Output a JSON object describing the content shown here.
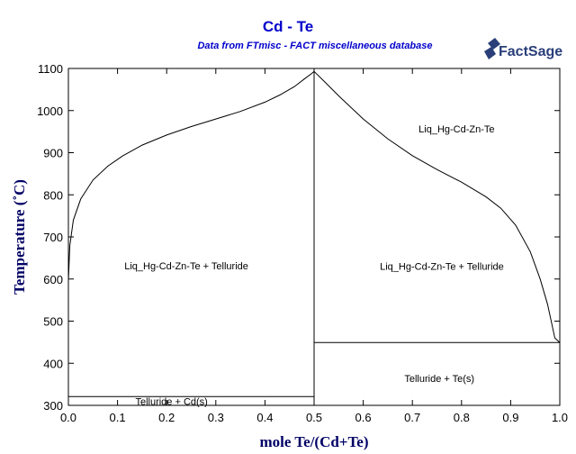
{
  "header": {
    "title": "Cd - Te",
    "subtitle": "Data from FTmisc - FACT miscellaneous database",
    "logo_text": "FactSage"
  },
  "colors": {
    "title": "#0000cc",
    "logo": "#2a3f7a",
    "axis_title": "#000066",
    "line": "#000000"
  },
  "chart_data": {
    "type": "line",
    "title": "Cd - Te",
    "subtitle": "Data from FTmisc - FACT miscellaneous database",
    "xlabel": "mole Te/(Cd+Te)",
    "ylabel": "Temperature (˚C)",
    "xlim": [
      0,
      1
    ],
    "ylim": [
      300,
      1100
    ],
    "xticks": [
      "0.0",
      "0.1",
      "0.2",
      "0.3",
      "0.4",
      "0.5",
      "0.6",
      "0.7",
      "0.8",
      "0.9",
      "1.0"
    ],
    "yticks": [
      "300",
      "400",
      "500",
      "600",
      "700",
      "800",
      "900",
      "1000",
      "1100"
    ],
    "grid": false,
    "series": [
      {
        "kind": "liquidus-left",
        "points": [
          [
            0.0,
            597
          ],
          [
            0.003,
            680
          ],
          [
            0.01,
            740
          ],
          [
            0.025,
            790
          ],
          [
            0.05,
            835
          ],
          [
            0.08,
            868
          ],
          [
            0.11,
            892
          ],
          [
            0.15,
            918
          ],
          [
            0.2,
            942
          ],
          [
            0.25,
            962
          ],
          [
            0.3,
            980
          ],
          [
            0.35,
            998
          ],
          [
            0.4,
            1020
          ],
          [
            0.43,
            1037
          ],
          [
            0.46,
            1057
          ],
          [
            0.48,
            1075
          ],
          [
            0.495,
            1088
          ],
          [
            0.5,
            1093
          ]
        ]
      },
      {
        "kind": "liquidus-right",
        "points": [
          [
            0.5,
            1093
          ],
          [
            0.52,
            1070
          ],
          [
            0.55,
            1035
          ],
          [
            0.6,
            980
          ],
          [
            0.65,
            933
          ],
          [
            0.7,
            893
          ],
          [
            0.75,
            860
          ],
          [
            0.8,
            830
          ],
          [
            0.85,
            795
          ],
          [
            0.88,
            768
          ],
          [
            0.91,
            728
          ],
          [
            0.94,
            665
          ],
          [
            0.96,
            600
          ],
          [
            0.975,
            540
          ],
          [
            0.99,
            460
          ],
          [
            1.0,
            449
          ]
        ]
      },
      {
        "kind": "compound-line",
        "points": [
          [
            0.5,
            300
          ],
          [
            0.5,
            1093
          ]
        ]
      },
      {
        "kind": "eutectic-te",
        "points": [
          [
            0.5,
            449
          ],
          [
            1.0,
            449
          ]
        ]
      },
      {
        "kind": "eutectic-cd",
        "points": [
          [
            0.0,
            321
          ],
          [
            0.5,
            321
          ]
        ]
      }
    ],
    "regions": [
      {
        "label": "Liq_Hg-Cd-Zn-Te",
        "x": 0.79,
        "y": 957
      },
      {
        "label": "Liq_Hg-Cd-Zn-Te + Telluride",
        "x": 0.24,
        "y": 632
      },
      {
        "label": "Liq_Hg-Cd-Zn-Te + Telluride",
        "x": 0.76,
        "y": 630
      },
      {
        "label": "Telluride + Te(s)",
        "x": 0.755,
        "y": 364
      },
      {
        "label": "Telluride + Cd(s)",
        "x": 0.21,
        "y": 310
      }
    ]
  }
}
